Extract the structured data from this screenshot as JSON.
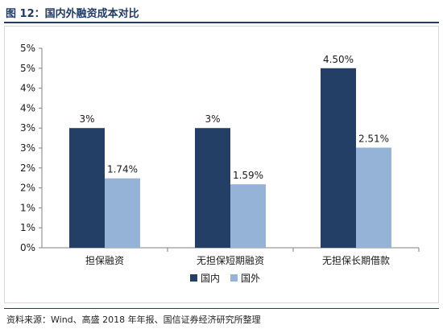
{
  "figure_title": "图 12：国内外融资成本对比",
  "source_note": "资料来源：Wind、高盛 2018 年年报、国信证券经济研究所整理",
  "colors": {
    "domestic": "#243f66",
    "foreign": "#95b3d7",
    "accent": "#1f3a64"
  },
  "chart_data": {
    "type": "bar",
    "categories": [
      "担保融资",
      "无担保短期融资",
      "无担保长期借款"
    ],
    "series": [
      {
        "name": "国内",
        "values": [
          3.0,
          3.0,
          4.5
        ],
        "labels": [
          "3%",
          "3%",
          "4.50%"
        ]
      },
      {
        "name": "国外",
        "values": [
          1.74,
          1.59,
          2.51
        ],
        "labels": [
          "1.74%",
          "1.59%",
          "2.51%"
        ]
      }
    ],
    "ylim": [
      0,
      5
    ],
    "yticks": [
      0,
      0.5,
      1,
      1.5,
      2,
      2.5,
      3,
      3.5,
      4,
      4.5,
      5
    ],
    "ytick_labels": [
      "0%",
      "1%",
      "1%",
      "2%",
      "2%",
      "3%",
      "3%",
      "4%",
      "4%",
      "5%",
      "5%"
    ],
    "grid": false,
    "legend": "bottom"
  }
}
